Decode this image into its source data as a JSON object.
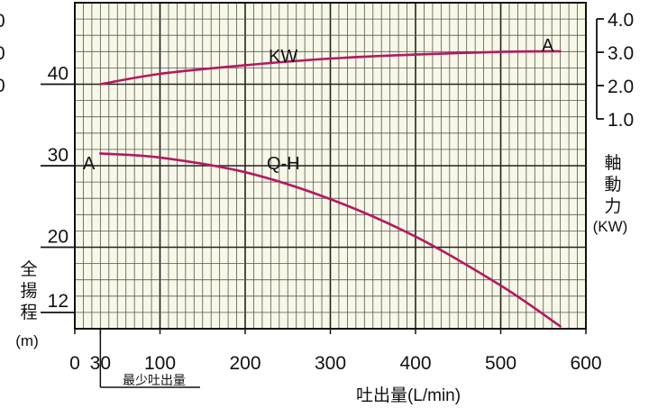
{
  "chart_data": {
    "type": "line",
    "xlabel": "吐出量(L/min)",
    "ylabel": "全揚程(m)",
    "ylabel_chars": [
      "全",
      "揚",
      "程"
    ],
    "ylabel_unit": "(m)",
    "y2label": "軸動力(KW)",
    "y2label_chars": [
      "軸",
      "動",
      "力"
    ],
    "y2label_unit": "(KW)",
    "min_flow_label": "最少吐出量",
    "min_flow_x": 30,
    "xlim": [
      0,
      600
    ],
    "ylim": [
      10,
      50
    ],
    "y2lim": [
      1.0,
      4.0
    ],
    "x_ticks": [
      "0",
      "30",
      "100",
      "200",
      "300",
      "400",
      "500",
      "600"
    ],
    "y_ticks": [
      "12",
      "20",
      "30",
      "40"
    ],
    "y2_ticks": [
      "1.0",
      "2.0",
      "3.0",
      "4.0"
    ],
    "left_edge_fragments": [
      "0",
      "0",
      "0",
      ")"
    ],
    "grid": true,
    "series": [
      {
        "name": "Q-H",
        "axis": "left",
        "end_label": "A",
        "x": [
          30,
          100,
          200,
          300,
          400,
          500,
          570
        ],
        "y": [
          31.5,
          31.0,
          29.2,
          25.9,
          21.3,
          15.3,
          10.3
        ]
      },
      {
        "name": "KW",
        "axis": "right",
        "end_label": "A",
        "x": [
          30,
          100,
          200,
          300,
          400,
          500,
          570
        ],
        "y": [
          2.04,
          2.35,
          2.61,
          2.81,
          2.93,
          3.01,
          3.03
        ]
      }
    ],
    "colors": {
      "curve": "#b5195f",
      "grid": "#444444",
      "axis": "#111111",
      "background": "#f8f8e8"
    }
  }
}
